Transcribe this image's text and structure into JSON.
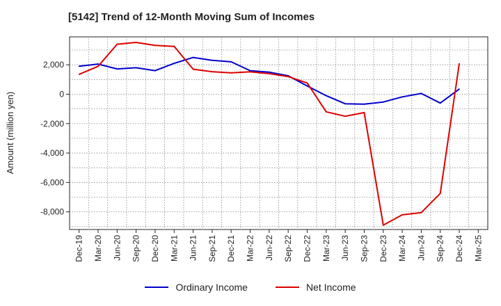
{
  "chart_data": {
    "type": "line",
    "title": "[5142]  Trend of 12-Month Moving Sum of Incomes",
    "xlabel": "",
    "ylabel": "Amount (million yen)",
    "ylim": [
      -9200,
      3900
    ],
    "yticks": [
      2000,
      0,
      -2000,
      -4000,
      -6000,
      -8000
    ],
    "ytick_labels": [
      "2,000",
      "0",
      "-2,000",
      "-4,000",
      "-6,000",
      "-8,000"
    ],
    "x": [
      "Dec-19",
      "Mar-20",
      "Jun-20",
      "Sep-20",
      "Dec-20",
      "Mar-21",
      "Jun-21",
      "Sep-21",
      "Dec-21",
      "Mar-22",
      "Jun-22",
      "Sep-22",
      "Dec-22",
      "Mar-23",
      "Jun-23",
      "Sep-23",
      "Dec-23",
      "Mar-24",
      "Jun-24",
      "Sep-24",
      "Dec-24",
      "Mar-25"
    ],
    "grid": true,
    "legend_position": "bottom",
    "series": [
      {
        "name": "Ordinary Income",
        "color": "#0000cc",
        "values": [
          1900,
          2050,
          1720,
          1800,
          1600,
          2100,
          2500,
          2300,
          2200,
          1600,
          1500,
          1250,
          560,
          -100,
          -650,
          -680,
          -530,
          -180,
          50,
          -600,
          350,
          null
        ]
      },
      {
        "name": "Net Income",
        "color": "#dd0000",
        "values": [
          1350,
          1900,
          3400,
          3520,
          3320,
          3250,
          1700,
          1530,
          1450,
          1520,
          1400,
          1200,
          760,
          -1200,
          -1500,
          -1250,
          -8900,
          -8200,
          -8050,
          -6750,
          2080,
          null
        ]
      }
    ]
  }
}
